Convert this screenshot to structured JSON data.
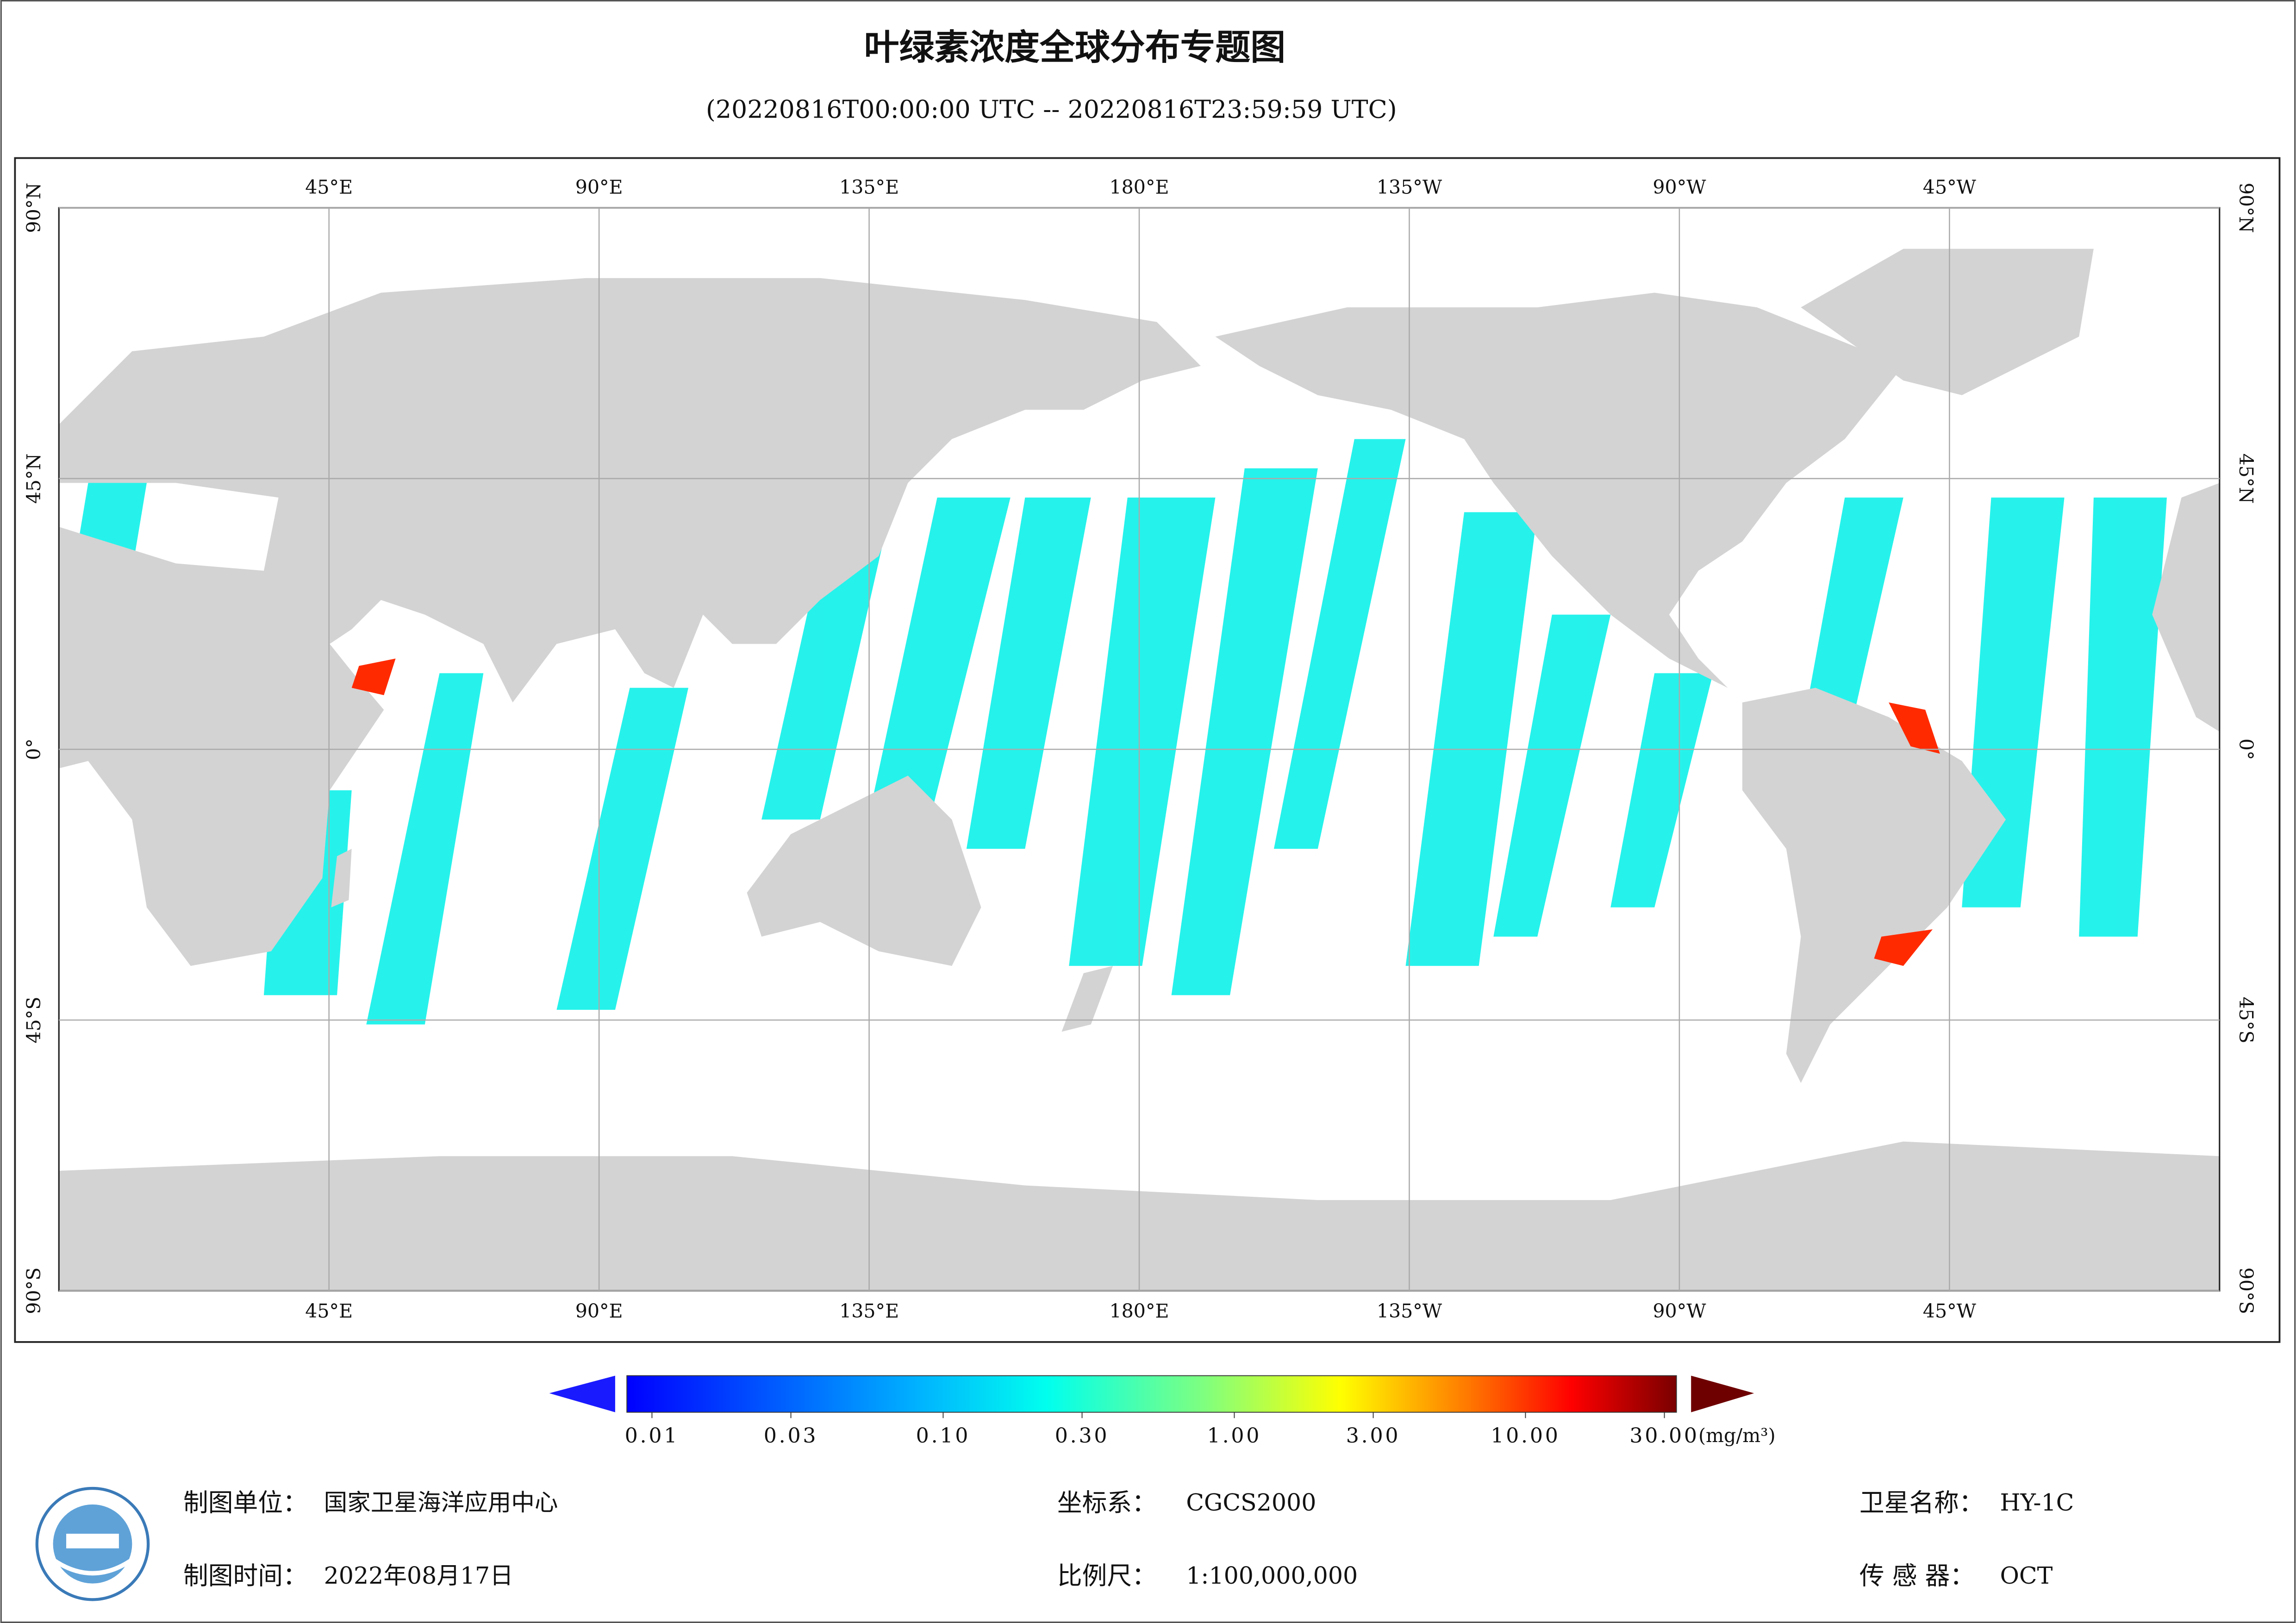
{
  "title": "叶绿素浓度全球分布专题图",
  "subtitle": "(20220816T00:00:00 UTC -- 20220816T23:59:59 UTC)",
  "map": {
    "lonlim": [
      0,
      360
    ],
    "latlim": [
      -90,
      90
    ],
    "lon_ticks": [
      {
        "value": 45,
        "label": "45°E"
      },
      {
        "value": 90,
        "label": "90°E"
      },
      {
        "value": 135,
        "label": "135°E"
      },
      {
        "value": 180,
        "label": "180°E"
      },
      {
        "value": 225,
        "label": "135°W"
      },
      {
        "value": 270,
        "label": "90°W"
      },
      {
        "value": 315,
        "label": "45°W"
      }
    ],
    "lat_ticks": [
      {
        "value": 90,
        "label": "90°N"
      },
      {
        "value": 45,
        "label": "45°N"
      },
      {
        "value": 0,
        "label": "0°"
      },
      {
        "value": -45,
        "label": "45°S"
      },
      {
        "value": -90,
        "label": "90°S"
      }
    ]
  },
  "colorbar": {
    "log": true,
    "lim": [
      0.0082,
      33
    ],
    "ticks": [
      0.01,
      0.03,
      {
        "value": 0.1,
        "label": "0.10"
      },
      {
        "value": 0.3,
        "label": "0.30"
      },
      {
        "value": 1,
        "label": "1.00"
      },
      {
        "value": 3,
        "label": "3.00"
      },
      {
        "value": 10,
        "label": "10.00"
      },
      {
        "value": 30,
        "label": "30.00"
      }
    ],
    "unit": "(mg/m³)"
  },
  "footer": [
    {
      "label": "制图单位：",
      "value": "国家卫星海洋应用中心"
    },
    {
      "label": "坐标系：",
      "value": "CGCS2000"
    },
    {
      "label": "卫星名称：",
      "value": "HY-1C"
    },
    {
      "label": "制图时间：",
      "value": "2022年08月17日"
    },
    {
      "label": "比例尺：",
      "value": "1:100,000,000"
    },
    {
      "label": "传 感 器：",
      "value": "OCT"
    }
  ]
}
